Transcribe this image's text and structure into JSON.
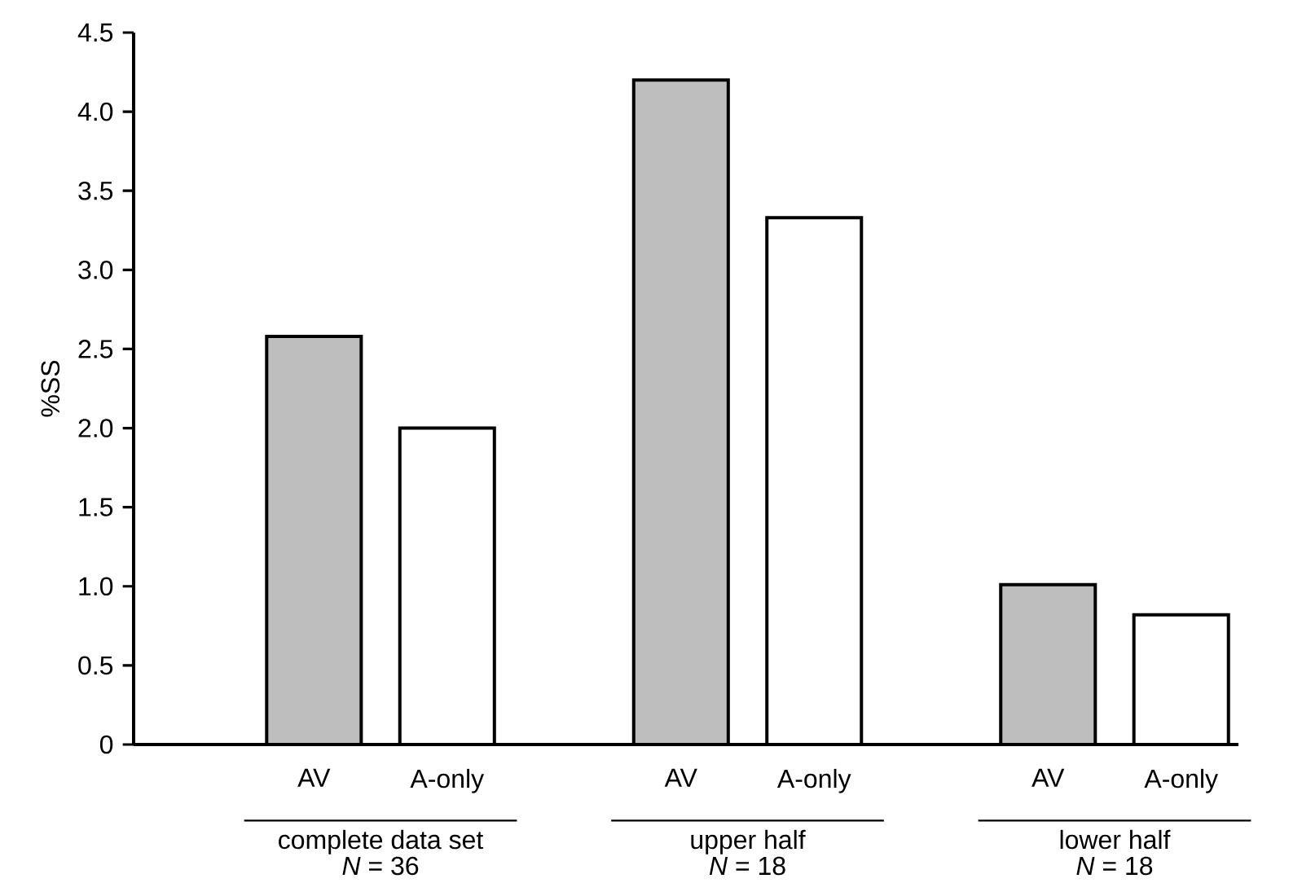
{
  "chart_data": {
    "type": "bar",
    "ylabel": "%SS",
    "categories": [
      "AV",
      "A-only",
      "AV",
      "A-only",
      "AV",
      "A-only"
    ],
    "values": [
      2.58,
      2.0,
      4.2,
      3.33,
      1.01,
      0.82
    ],
    "colors": [
      "#bebebe",
      "#ffffff",
      "#bebebe",
      "#ffffff",
      "#bebebe",
      "#ffffff"
    ],
    "ylim": [
      0,
      4.5
    ],
    "yticks": [
      0,
      0.5,
      {
        "value": 1,
        "label": "1.0"
      },
      1.5,
      {
        "value": 2,
        "label": "2.0"
      },
      2.5,
      {
        "value": 3,
        "label": "3.0"
      },
      3.5,
      {
        "value": 4,
        "label": "4.0"
      },
      4.5
    ],
    "annotations": [
      "complete data set",
      "*N* = 36",
      "upper half",
      "*N* = 18",
      "lower half",
      "*N* = 18"
    ],
    "grid": false
  }
}
